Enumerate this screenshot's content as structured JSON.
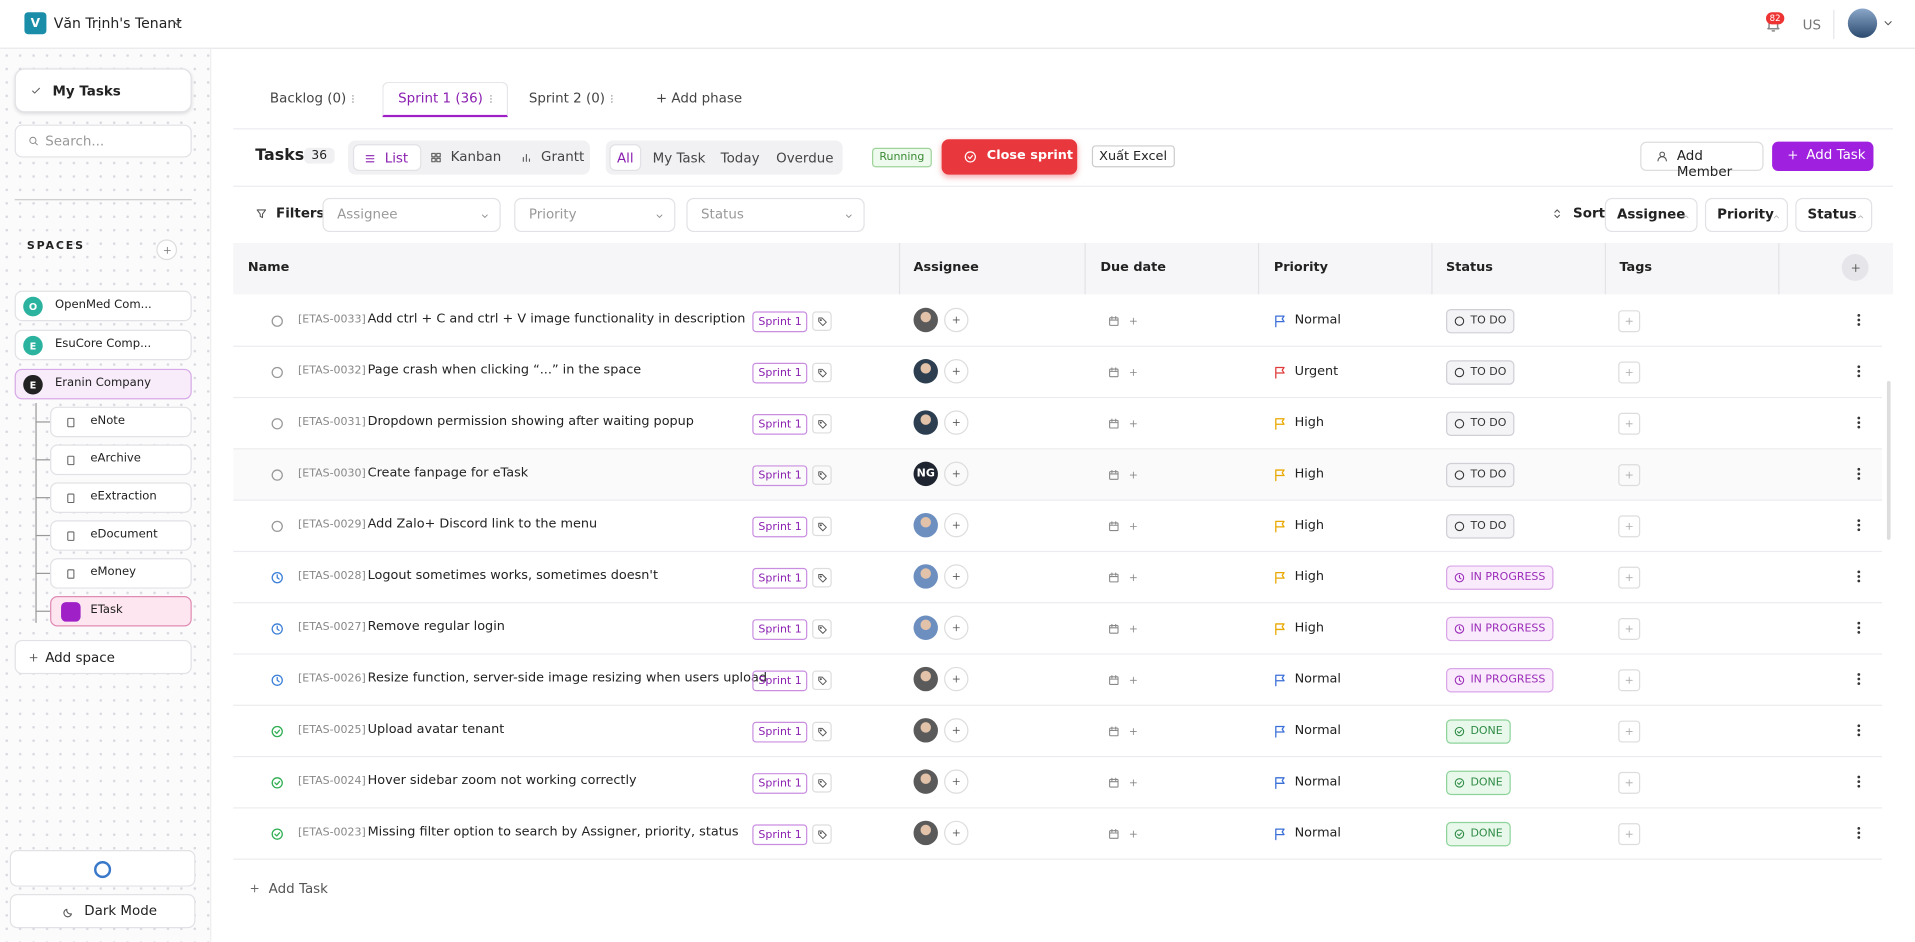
{
  "header": {
    "tenant_initial": "V",
    "tenant_name": "Văn Trịnh's Tenant",
    "notification_count": "82",
    "language": "US"
  },
  "sidebar": {
    "my_tasks": "My Tasks",
    "search_placeholder": "Search...",
    "spaces_label": "SPACES",
    "spaces": [
      {
        "initial": "O",
        "name": "OpenMed Com..."
      },
      {
        "initial": "E",
        "name": "EsuCore Comp..."
      },
      {
        "initial": "E",
        "name": "Eranin Company"
      }
    ],
    "subspaces": [
      "eNote",
      "eArchive",
      "eExtraction",
      "eDocument",
      "eMoney",
      "ETask"
    ],
    "add_space": "Add space",
    "dark_mode": "Dark Mode"
  },
  "tabs": {
    "items": [
      "Backlog (0)",
      "Sprint 1 (36)",
      "Sprint 2 (0)"
    ],
    "add_phase": "+ Add phase"
  },
  "toolbar": {
    "title": "Tasks",
    "count": "36",
    "views": [
      "List",
      "Kanban",
      "Grantt"
    ],
    "quick_filters": [
      "All",
      "My Task",
      "Today",
      "Overdue"
    ],
    "sprint_state": "Running",
    "close_sprint": "Close sprint",
    "export": "Xuất Excel",
    "add_member": "Add Member",
    "add_task": "Add Task"
  },
  "filters": {
    "label": "Filters",
    "selects": [
      "Assignee",
      "Priority",
      "Status"
    ],
    "sort_label": "Sort",
    "sort_fields": [
      "Assignee",
      "Priority",
      "Status"
    ]
  },
  "table": {
    "columns": [
      "Name",
      "Assignee",
      "Due date",
      "Priority",
      "Status",
      "Tags"
    ],
    "rows": [
      {
        "id": "[ETAS-0033]",
        "title": "Add ctrl + C and ctrl + V image functionality in description",
        "sprint": "Sprint 1",
        "priority": "Normal",
        "status": "TO DO"
      },
      {
        "id": "[ETAS-0032]",
        "title": "Page crash when clicking “...” in the space",
        "sprint": "Sprint 1",
        "priority": "Urgent",
        "status": "TO DO"
      },
      {
        "id": "[ETAS-0031]",
        "title": "Dropdown permission showing after waiting popup",
        "sprint": "Sprint 1",
        "priority": "High",
        "status": "TO DO"
      },
      {
        "id": "[ETAS-0030]",
        "title": "Create fanpage for eTask",
        "sprint": "Sprint 1",
        "assignee_initials": "NG",
        "priority": "High",
        "status": "TO DO"
      },
      {
        "id": "[ETAS-0029]",
        "title": "Add Zalo+ Discord link to the menu",
        "sprint": "Sprint 1",
        "priority": "High",
        "status": "TO DO"
      },
      {
        "id": "[ETAS-0028]",
        "title": "Logout sometimes works, sometimes doesn't",
        "sprint": "Sprint 1",
        "priority": "High",
        "status": "IN PROGRESS"
      },
      {
        "id": "[ETAS-0027]",
        "title": "Remove regular login",
        "sprint": "Sprint 1",
        "priority": "High",
        "status": "IN PROGRESS"
      },
      {
        "id": "[ETAS-0026]",
        "title": "Resize function, server-side image resizing when users upload",
        "sprint": "Sprint 1",
        "priority": "Normal",
        "status": "IN PROGRESS"
      },
      {
        "id": "[ETAS-0025]",
        "title": "Upload avatar tenant",
        "sprint": "Sprint 1",
        "priority": "Normal",
        "status": "DONE"
      },
      {
        "id": "[ETAS-0024]",
        "title": "Hover sidebar zoom not working correctly",
        "sprint": "Sprint 1",
        "priority": "Normal",
        "status": "DONE"
      },
      {
        "id": "[ETAS-0023]",
        "title": "Missing filter option to search by Assigner, priority, status",
        "sprint": "Sprint 1",
        "priority": "Normal",
        "status": "DONE"
      }
    ],
    "add_task": "Add Task"
  }
}
